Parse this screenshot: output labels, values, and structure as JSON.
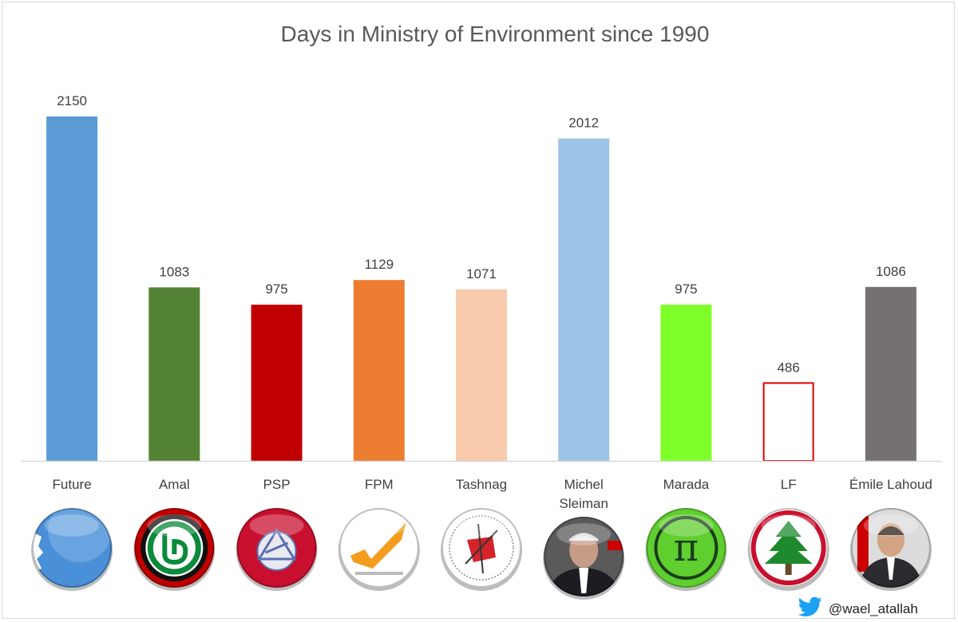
{
  "chart_data": {
    "type": "bar",
    "title": "Days in Ministry of Environment since 1990",
    "categories": [
      "Future",
      "Amal",
      "PSP",
      "FPM",
      "Tashnag",
      "Michel Sleiman",
      "Marada",
      "LF",
      "Émile Lahoud"
    ],
    "values": [
      2150,
      1083,
      975,
      1129,
      1071,
      2012,
      975,
      486,
      1086
    ],
    "colors": [
      "#5b9bd5",
      "#548235",
      "#c00000",
      "#ed7d31",
      "#f8cbad",
      "#9dc3e6",
      "#7fff2a",
      "#ffffff",
      "#767171"
    ],
    "outlined": [
      false,
      false,
      false,
      false,
      false,
      false,
      false,
      true,
      false
    ],
    "outline_color": "#e00000",
    "ylim": [
      0,
      2150
    ],
    "grid": false,
    "legend": "none",
    "data_labels": true
  },
  "logos": [
    {
      "name": "future-logo-icon",
      "bg": "#4a90d9"
    },
    {
      "name": "amal-logo-icon",
      "bg": "#c00000"
    },
    {
      "name": "psp-logo-icon",
      "bg": "#c8102e"
    },
    {
      "name": "fpm-logo-icon",
      "bg": "#ffffff"
    },
    {
      "name": "tashnag-logo-icon",
      "bg": "#ffffff"
    },
    {
      "name": "michel-sleiman-photo-icon",
      "bg": "#6a6a6a"
    },
    {
      "name": "marada-logo-icon",
      "bg": "#5fcf2f"
    },
    {
      "name": "lf-logo-icon",
      "bg": "#ffffff"
    },
    {
      "name": "emile-lahoud-photo-icon",
      "bg": "#d8d8d8"
    }
  ],
  "footer": {
    "twitter_handle": "@wael_atallah",
    "twitter_icon": "twitter-bird-icon",
    "twitter_color": "#1da1f2"
  }
}
